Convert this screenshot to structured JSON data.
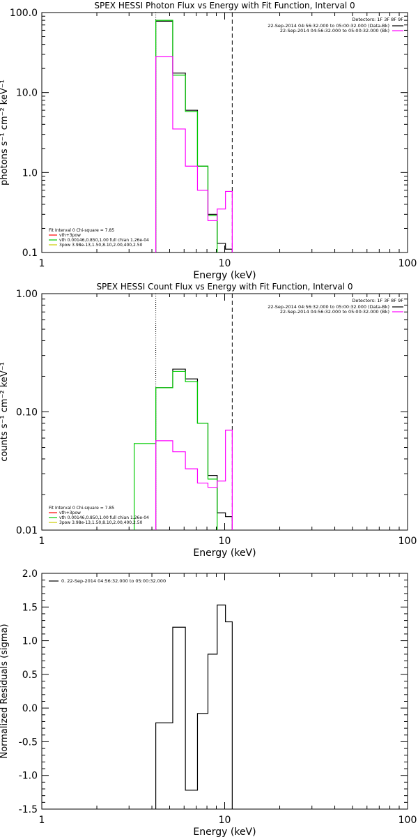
{
  "chart_data": [
    {
      "type": "line",
      "title": "SPEX HESSI Photon Flux vs Energy with Fit Function, Interval 0",
      "xlabel": "Energy (keV)",
      "ylabel": "photons s⁻¹ cm⁻² keV⁻¹",
      "xscale": "log",
      "yscale": "log",
      "xlim": [
        1,
        100
      ],
      "ylim": [
        0.1,
        100
      ],
      "x_tick_labels": [
        "1",
        "10",
        "100"
      ],
      "y_tick_labels": [
        "0.1",
        "1.0",
        "10.0",
        "100.0"
      ],
      "detectors_note": "Detectors: 1F 3F 8F 9F",
      "legend_top": [
        {
          "label": "22-Sep-2014 04:56:32.000 to 05:00:32.000 (Data-Bk)",
          "color": "#000000"
        },
        {
          "label": "22-Sep-2014 04:56:32.000 to 05:00:32.000 (Bk)",
          "color": "#ff00ff"
        }
      ],
      "legend_bottom": {
        "header": "Fit Interval 0   Chi-square = 7.85",
        "items": [
          {
            "label": "vth+3pow",
            "color": "#ff0000"
          },
          {
            "label": "vth 0.00146,0.850,1.00  full chian 1.26e-04",
            "color": "#00cc00"
          },
          {
            "label": "3pow 3.98e-13,1.50,8.10,2.00,400,2.50",
            "color": "#cccc00"
          }
        ]
      },
      "vlines": [
        {
          "x": 4.2,
          "style": "dotted"
        },
        {
          "x": 11.0,
          "style": "dashed"
        }
      ],
      "series": [
        {
          "color": "#000000",
          "bin_edges": [
            4.2,
            5.2,
            6.1,
            7.1,
            8.1,
            9.1,
            10.1,
            11.0
          ],
          "values": [
            78.0,
            17.5,
            6.0,
            1.2,
            0.3,
            0.13,
            0.11
          ]
        },
        {
          "color": "#00cc00",
          "bin_edges": [
            3.2,
            4.2,
            5.2,
            6.1,
            7.1,
            8.1,
            9.1
          ],
          "values": [
            null,
            80.0,
            16.5,
            5.8,
            1.2,
            0.29
          ]
        },
        {
          "color": "#ff00ff",
          "bin_edges": [
            4.2,
            5.2,
            6.1,
            7.1,
            8.1,
            9.1,
            10.1,
            11.0
          ],
          "values": [
            28.0,
            3.5,
            1.2,
            0.6,
            0.25,
            0.35,
            0.58
          ]
        }
      ]
    },
    {
      "type": "line",
      "title": "SPEX HESSI Count Flux vs Energy with Fit Function, Interval 0",
      "xlabel": "Energy (keV)",
      "ylabel": "counts s⁻¹ cm⁻² keV⁻¹",
      "xscale": "log",
      "yscale": "log",
      "xlim": [
        1,
        100
      ],
      "ylim": [
        0.01,
        1
      ],
      "x_tick_labels": [
        "1",
        "10",
        "100"
      ],
      "y_tick_labels": [
        "0.01",
        "0.10",
        "1.00"
      ],
      "detectors_note": "Detectors: 1F 3F 8F 9F",
      "legend_top": [
        {
          "label": "22-Sep-2014 04:56:32.000 to 05:00:32.000 (Data-Bk)",
          "color": "#000000"
        },
        {
          "label": "22-Sep-2014 04:56:32.000 to 05:00:32.000 (Bk)",
          "color": "#ff00ff"
        }
      ],
      "legend_bottom": {
        "header": "Fit Interval 0   Chi-square = 7.85",
        "items": [
          {
            "label": "vth+3pow",
            "color": "#ff0000"
          },
          {
            "label": "vth 0.00146,0.850,1.00  full chian 1.26e-04",
            "color": "#00cc00"
          },
          {
            "label": "3pow 3.98e-13,1.50,8.10,2.00,400,2.50",
            "color": "#cccc00"
          }
        ]
      },
      "vlines": [
        {
          "x": 4.2,
          "style": "dotted"
        },
        {
          "x": 11.0,
          "style": "dashed"
        }
      ],
      "series": [
        {
          "color": "#000000",
          "bin_edges": [
            4.2,
            5.2,
            6.1,
            7.1,
            8.1,
            9.1,
            10.1,
            11.0
          ],
          "values": [
            0.16,
            0.23,
            0.19,
            0.08,
            0.029,
            0.014,
            0.013
          ]
        },
        {
          "color": "#00cc00",
          "bin_edges": [
            3.2,
            4.2,
            5.2,
            6.1,
            7.1,
            8.1,
            9.1
          ],
          "values": [
            0.054,
            0.16,
            0.22,
            0.18,
            0.08,
            0.027
          ]
        },
        {
          "color": "#ff00ff",
          "bin_edges": [
            4.2,
            5.2,
            6.1,
            7.1,
            8.1,
            9.1,
            10.1,
            11.0
          ],
          "values": [
            0.057,
            0.046,
            0.033,
            0.025,
            0.023,
            0.026,
            0.07
          ]
        }
      ]
    },
    {
      "type": "line",
      "title": "",
      "xlabel": "Energy (keV)",
      "ylabel": "Normalized Residuals (sigma)",
      "xscale": "log",
      "yscale": "linear",
      "xlim": [
        1,
        100
      ],
      "ylim": [
        -1.5,
        2.0
      ],
      "x_tick_labels": [
        "1",
        "10",
        "100"
      ],
      "y_tick_labels": [
        "-1.5",
        "-1.0",
        "-0.5",
        "0.0",
        "0.5",
        "1.0",
        "1.5",
        "2.0"
      ],
      "legend_top": [
        {
          "label": "0. 22-Sep-2014 04:56:32.000 to 05:00:32.000",
          "color": "#000000"
        }
      ],
      "series": [
        {
          "color": "#000000",
          "bin_edges": [
            4.2,
            5.2,
            6.1,
            7.1,
            8.1,
            9.1,
            10.1,
            11.0
          ],
          "values": [
            -0.22,
            1.2,
            -1.22,
            -0.08,
            0.8,
            1.53,
            1.28
          ]
        }
      ]
    }
  ]
}
